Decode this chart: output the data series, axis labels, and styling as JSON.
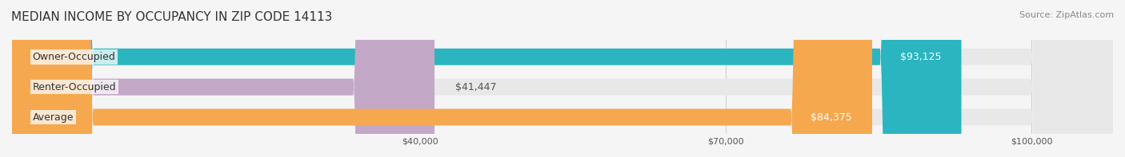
{
  "title": "MEDIAN INCOME BY OCCUPANCY IN ZIP CODE 14113",
  "source": "Source: ZipAtlas.com",
  "categories": [
    "Owner-Occupied",
    "Renter-Occupied",
    "Average"
  ],
  "values": [
    93125,
    41447,
    84375
  ],
  "bar_colors": [
    "#2ab5c0",
    "#c3a8c8",
    "#f5a84e"
  ],
  "label_colors": [
    "#ffffff",
    "#555555",
    "#ffffff"
  ],
  "value_labels": [
    "$93,125",
    "$41,447",
    "$84,375"
  ],
  "bar_bg_color": "#e8e8e8",
  "x_ticks": [
    40000,
    70000,
    100000
  ],
  "x_tick_labels": [
    "$40,000",
    "$70,000",
    "$100,000"
  ],
  "x_max": 108000,
  "x_min": 0,
  "bar_height": 0.55,
  "title_fontsize": 11,
  "source_fontsize": 8,
  "label_fontsize": 9,
  "value_fontsize": 9,
  "background_color": "#f5f5f5"
}
